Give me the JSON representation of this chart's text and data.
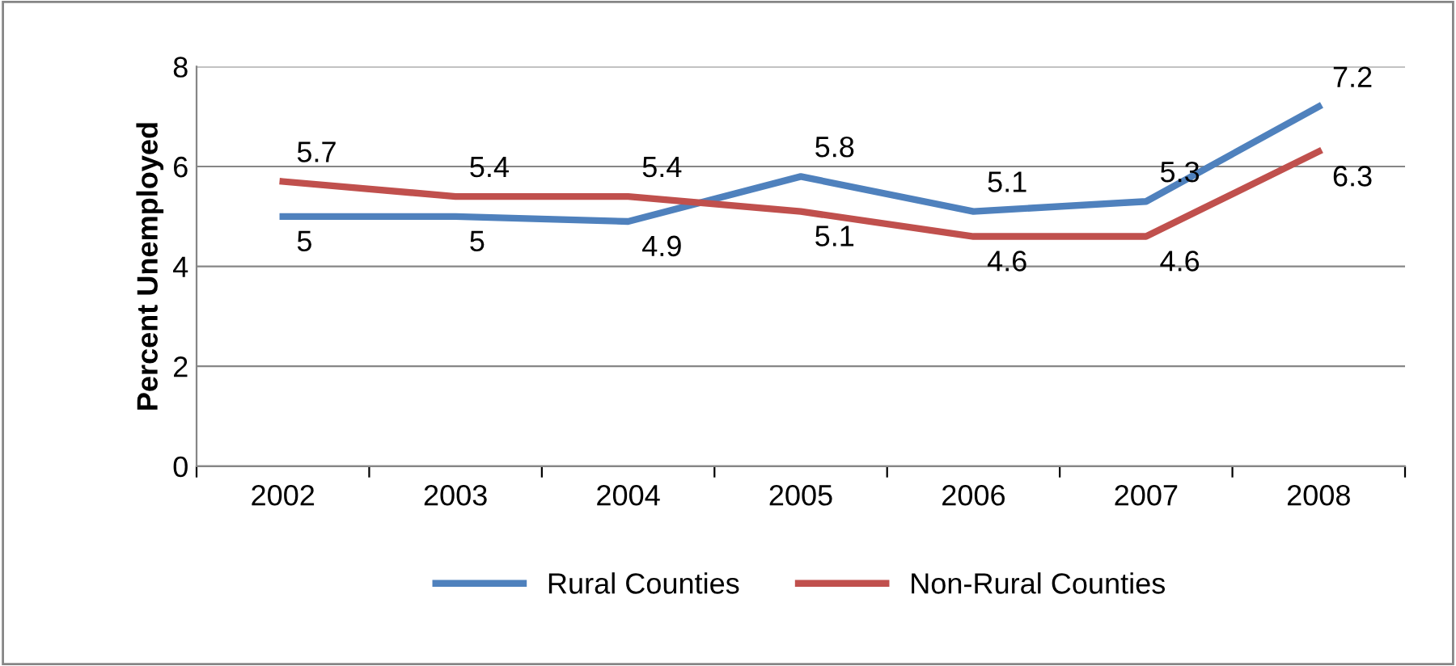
{
  "chart_data": {
    "type": "line",
    "ylabel": "Percent Unemployed",
    "categories": [
      "2002",
      "2003",
      "2004",
      "2005",
      "2006",
      "2007",
      "2008"
    ],
    "series": [
      {
        "name": "Rural Counties",
        "color": "#4f81bd",
        "values": [
          5,
          5,
          4.9,
          5.8,
          5.1,
          5.3,
          7.2
        ]
      },
      {
        "name": "Non-Rural Counties",
        "color": "#c0504d",
        "values": [
          5.7,
          5.4,
          5.4,
          5.1,
          4.6,
          4.6,
          6.3
        ]
      }
    ],
    "ylim": [
      0,
      8
    ],
    "yticks": [
      0,
      2,
      4,
      6,
      8
    ],
    "grid": "y",
    "legend": "bottom",
    "data_labels": true,
    "marker": "none",
    "line_style": "solid"
  }
}
